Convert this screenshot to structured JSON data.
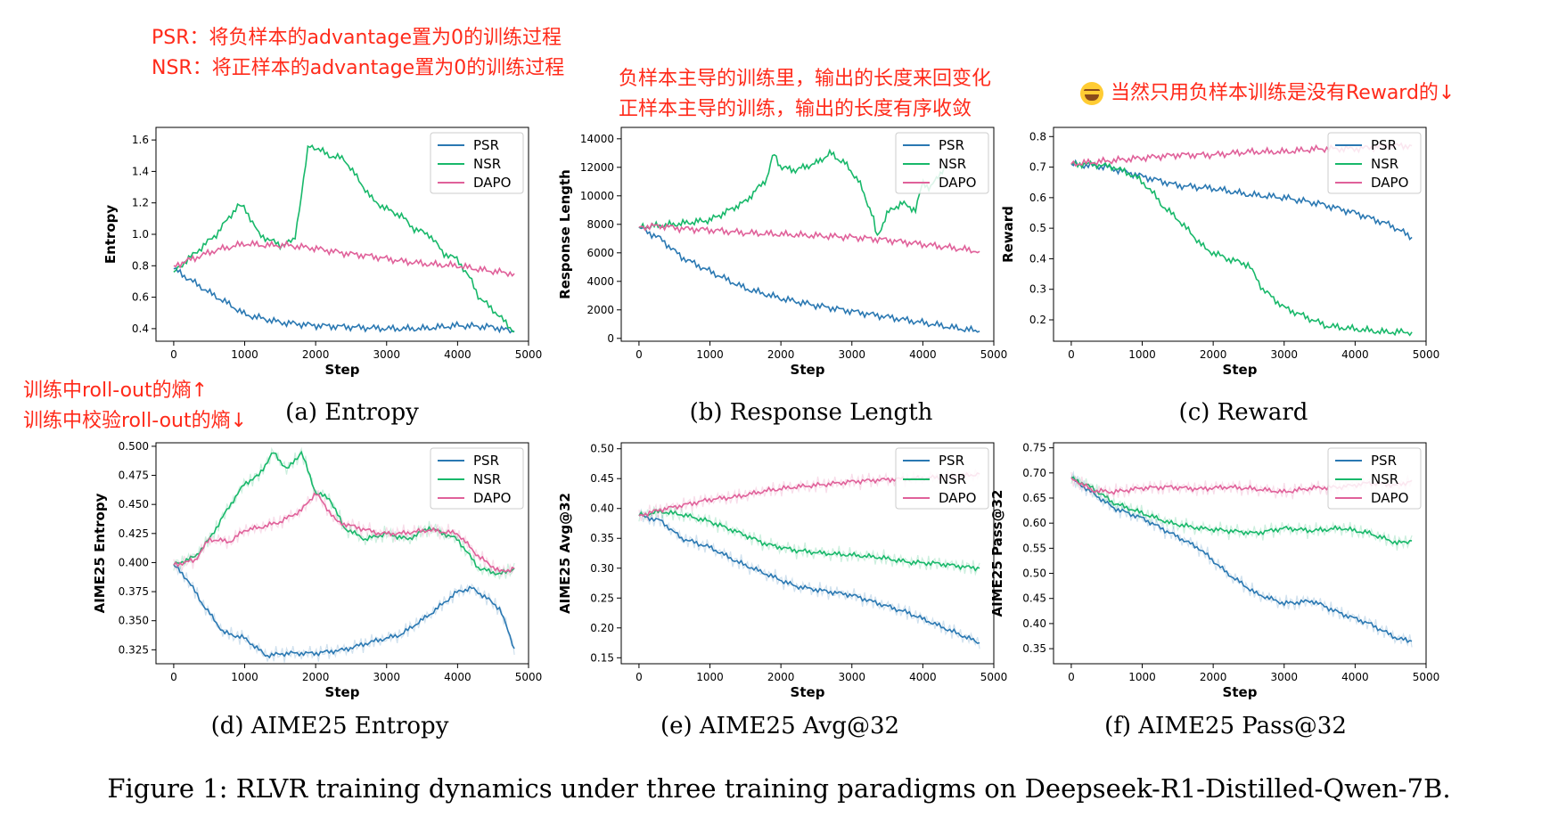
{
  "annotations": {
    "psr_def": "PSR：将负样本的advantage置为0的训练过程",
    "nsr_def": "NSR：将正样本的advantage置为0的训练过程",
    "length_note_1": "负样本主导的训练里，输出的长度来回变化",
    "length_note_2": "正样本主导的训练，输出的长度有序收敛",
    "reward_note": "当然只用负样本训练是没有Reward的↓",
    "entropy_note_1": "训练中roll-out的熵↑",
    "entropy_note_2": "训练中校验roll-out的熵↓"
  },
  "figure_caption": "Figure 1: RLVR training dynamics under three training paradigms on Deepseek-R1-Distilled-Qwen-7B.",
  "colors": {
    "PSR": "#2a78b2",
    "NSR": "#18b86a",
    "DAPO": "#e0619a"
  },
  "chart_data": [
    {
      "id": "a",
      "type": "line",
      "caption": "(a) Entropy",
      "xlabel": "Step",
      "ylabel": "Entropy",
      "xlim": [
        -250,
        5000
      ],
      "ylim": [
        0.32,
        1.68
      ],
      "xticks": [
        0,
        1000,
        2000,
        3000,
        4000,
        5000
      ],
      "yticks": [
        0.4,
        0.6,
        0.8,
        1.0,
        1.2,
        1.4,
        1.6
      ],
      "ytick_labels": [
        "0.4",
        "0.6",
        "0.8",
        "1.0",
        "1.2",
        "1.4",
        "1.6"
      ],
      "legend": "top-right",
      "grid": false,
      "series": [
        {
          "name": "PSR",
          "x": [
            0,
            200,
            500,
            800,
            1000,
            1500,
            2000,
            2500,
            3000,
            3500,
            4000,
            4500,
            4800
          ],
          "y": [
            0.78,
            0.72,
            0.63,
            0.55,
            0.49,
            0.44,
            0.42,
            0.41,
            0.4,
            0.4,
            0.42,
            0.41,
            0.38
          ]
        },
        {
          "name": "NSR",
          "x": [
            0,
            300,
            600,
            900,
            1000,
            1200,
            1500,
            1700,
            1800,
            1900,
            2000,
            2200,
            2400,
            2600,
            2800,
            3000,
            3200,
            3400,
            3600,
            3800,
            4000,
            4200,
            4300,
            4500,
            4650,
            4800
          ],
          "y": [
            0.76,
            0.88,
            1.0,
            1.18,
            1.17,
            1.0,
            0.93,
            0.96,
            1.25,
            1.57,
            1.55,
            1.5,
            1.48,
            1.35,
            1.22,
            1.16,
            1.12,
            1.03,
            1.0,
            0.88,
            0.84,
            0.7,
            0.6,
            0.52,
            0.45,
            0.38
          ]
        },
        {
          "name": "DAPO",
          "x": [
            0,
            300,
            600,
            900,
            1000,
            1300,
            1600,
            2000,
            2400,
            2800,
            3200,
            3600,
            4000,
            4400,
            4800
          ],
          "y": [
            0.8,
            0.85,
            0.9,
            0.93,
            0.94,
            0.93,
            0.93,
            0.91,
            0.88,
            0.86,
            0.83,
            0.81,
            0.8,
            0.77,
            0.75
          ]
        }
      ]
    },
    {
      "id": "b",
      "type": "line",
      "caption": "(b) Response Length",
      "xlabel": "Step",
      "ylabel": "Response Length",
      "xlim": [
        -250,
        5000
      ],
      "ylim": [
        -200,
        14800
      ],
      "xticks": [
        0,
        1000,
        2000,
        3000,
        4000,
        5000
      ],
      "yticks": [
        0,
        2000,
        4000,
        6000,
        8000,
        10000,
        12000,
        14000
      ],
      "ytick_labels": [
        "0",
        "2000",
        "4000",
        "6000",
        "8000",
        "10000",
        "12000",
        "14000"
      ],
      "legend": "top-right",
      "grid": false,
      "series": [
        {
          "name": "PSR",
          "x": [
            0,
            300,
            600,
            1000,
            1500,
            2000,
            2500,
            3000,
            3500,
            4000,
            4500,
            4800
          ],
          "y": [
            7800,
            7000,
            5700,
            4700,
            3500,
            2800,
            2300,
            1900,
            1500,
            1100,
            700,
            500
          ]
        },
        {
          "name": "NSR",
          "x": [
            0,
            500,
            1000,
            1200,
            1500,
            1800,
            1900,
            2000,
            2200,
            2500,
            2700,
            2800,
            2900,
            3100,
            3300,
            3350,
            3500,
            3700,
            3900,
            4000,
            4100,
            4300
          ],
          "y": [
            7800,
            8000,
            8300,
            8800,
            9600,
            11200,
            13000,
            12000,
            11800,
            12300,
            13000,
            12600,
            12300,
            11000,
            8500,
            7000,
            8800,
            9500,
            9000,
            11000,
            10500,
            12000
          ]
        },
        {
          "name": "DAPO",
          "x": [
            0,
            300,
            600,
            1000,
            1500,
            2000,
            2500,
            3000,
            3500,
            4000,
            4500,
            4800
          ],
          "y": [
            7800,
            7900,
            7700,
            7600,
            7400,
            7300,
            7200,
            7100,
            6900,
            6600,
            6300,
            6100
          ]
        }
      ]
    },
    {
      "id": "c",
      "type": "line",
      "caption": "(c) Reward",
      "xlabel": "Step",
      "ylabel": "Reward",
      "xlim": [
        -250,
        5000
      ],
      "ylim": [
        0.13,
        0.83
      ],
      "xticks": [
        0,
        1000,
        2000,
        3000,
        4000,
        5000
      ],
      "yticks": [
        0.2,
        0.3,
        0.4,
        0.5,
        0.6,
        0.7,
        0.8
      ],
      "ytick_labels": [
        "0.2",
        "0.3",
        "0.4",
        "0.5",
        "0.6",
        "0.7",
        "0.8"
      ],
      "legend": "top-right",
      "grid": false,
      "series": [
        {
          "name": "PSR",
          "x": [
            0,
            500,
            1000,
            1500,
            2000,
            2500,
            3000,
            3500,
            4000,
            4500,
            4800
          ],
          "y": [
            0.71,
            0.7,
            0.67,
            0.64,
            0.63,
            0.61,
            0.6,
            0.58,
            0.55,
            0.51,
            0.47
          ]
        },
        {
          "name": "NSR",
          "x": [
            0,
            300,
            600,
            900,
            1100,
            1300,
            1500,
            1700,
            1900,
            2000,
            2200,
            2500,
            2700,
            3000,
            3300,
            3600,
            4000,
            4400,
            4800
          ],
          "y": [
            0.71,
            0.71,
            0.7,
            0.67,
            0.63,
            0.57,
            0.53,
            0.48,
            0.43,
            0.42,
            0.4,
            0.38,
            0.3,
            0.24,
            0.21,
            0.18,
            0.17,
            0.16,
            0.16
          ]
        },
        {
          "name": "DAPO",
          "x": [
            0,
            500,
            1000,
            1500,
            2000,
            2500,
            3000,
            3500,
            4000,
            4500,
            4800
          ],
          "y": [
            0.71,
            0.72,
            0.73,
            0.74,
            0.74,
            0.75,
            0.75,
            0.76,
            0.76,
            0.77,
            0.77
          ]
        }
      ]
    },
    {
      "id": "d",
      "type": "line",
      "caption": "(d) AIME25 Entropy",
      "xlabel": "Step",
      "ylabel": "AIME25 Entropy",
      "xlim": [
        -250,
        5000
      ],
      "ylim": [
        0.313,
        0.503
      ],
      "xticks": [
        0,
        1000,
        2000,
        3000,
        4000,
        5000
      ],
      "yticks": [
        0.325,
        0.35,
        0.375,
        0.4,
        0.425,
        0.45,
        0.475,
        0.5
      ],
      "ytick_labels": [
        "0.325",
        "0.350",
        "0.375",
        "0.400",
        "0.425",
        "0.450",
        "0.475",
        "0.500"
      ],
      "legend": "top-right",
      "grid": false,
      "series": [
        {
          "name": "PSR",
          "x": [
            0,
            200,
            400,
            700,
            1000,
            1300,
            1600,
            2000,
            2400,
            2800,
            3200,
            3600,
            4000,
            4200,
            4400,
            4600,
            4800
          ],
          "y": [
            0.398,
            0.385,
            0.365,
            0.34,
            0.335,
            0.32,
            0.322,
            0.322,
            0.325,
            0.332,
            0.338,
            0.355,
            0.375,
            0.378,
            0.37,
            0.36,
            0.326
          ]
        },
        {
          "name": "NSR",
          "x": [
            0,
            300,
            500,
            800,
            1000,
            1200,
            1400,
            1600,
            1800,
            2000,
            2200,
            2400,
            2700,
            3000,
            3300,
            3600,
            4000,
            4300,
            4600,
            4800
          ],
          "y": [
            0.398,
            0.405,
            0.42,
            0.45,
            0.468,
            0.475,
            0.495,
            0.48,
            0.495,
            0.46,
            0.455,
            0.43,
            0.42,
            0.425,
            0.42,
            0.43,
            0.42,
            0.395,
            0.39,
            0.395
          ]
        },
        {
          "name": "DAPO",
          "x": [
            0,
            300,
            500,
            800,
            1000,
            1200,
            1500,
            1800,
            2000,
            2300,
            2600,
            2900,
            3200,
            3600,
            4000,
            4300,
            4600,
            4800
          ],
          "y": [
            0.398,
            0.402,
            0.42,
            0.418,
            0.428,
            0.43,
            0.435,
            0.445,
            0.46,
            0.435,
            0.43,
            0.425,
            0.425,
            0.428,
            0.425,
            0.405,
            0.392,
            0.395
          ]
        }
      ]
    },
    {
      "id": "e",
      "type": "line",
      "caption": "(e) AIME25 Avg@32",
      "xlabel": "Step",
      "ylabel": "AIME25 Avg@32",
      "xlim": [
        -250,
        5000
      ],
      "ylim": [
        0.14,
        0.51
      ],
      "xticks": [
        0,
        1000,
        2000,
        3000,
        4000,
        5000
      ],
      "yticks": [
        0.15,
        0.2,
        0.25,
        0.3,
        0.35,
        0.4,
        0.45,
        0.5
      ],
      "ytick_labels": [
        "0.15",
        "0.20",
        "0.25",
        "0.30",
        "0.35",
        "0.40",
        "0.45",
        "0.50"
      ],
      "legend": "top-right",
      "grid": false,
      "series": [
        {
          "name": "PSR",
          "x": [
            0,
            300,
            600,
            1000,
            1400,
            1800,
            2200,
            2600,
            3000,
            3400,
            3800,
            4200,
            4600,
            4800
          ],
          "y": [
            0.388,
            0.38,
            0.35,
            0.335,
            0.31,
            0.29,
            0.27,
            0.262,
            0.255,
            0.24,
            0.225,
            0.205,
            0.185,
            0.175
          ]
        },
        {
          "name": "NSR",
          "x": [
            0,
            300,
            600,
            1000,
            1400,
            1800,
            2200,
            2600,
            3000,
            3400,
            3800,
            4200,
            4600,
            4800
          ],
          "y": [
            0.388,
            0.395,
            0.39,
            0.378,
            0.36,
            0.34,
            0.33,
            0.325,
            0.322,
            0.318,
            0.31,
            0.308,
            0.302,
            0.3
          ]
        },
        {
          "name": "DAPO",
          "x": [
            0,
            300,
            600,
            1000,
            1400,
            1800,
            2200,
            2600,
            3000,
            3400,
            3800,
            4200,
            4600,
            4800
          ],
          "y": [
            0.388,
            0.398,
            0.405,
            0.415,
            0.42,
            0.43,
            0.436,
            0.44,
            0.445,
            0.448,
            0.45,
            0.452,
            0.455,
            0.458
          ]
        }
      ]
    },
    {
      "id": "f",
      "type": "line",
      "caption": "(f) AIME25 Pass@32",
      "xlabel": "Step",
      "ylabel": "AIME25 Pass@32",
      "xlim": [
        -250,
        5000
      ],
      "ylim": [
        0.32,
        0.76
      ],
      "xticks": [
        0,
        1000,
        2000,
        3000,
        4000,
        5000
      ],
      "yticks": [
        0.35,
        0.4,
        0.45,
        0.5,
        0.55,
        0.6,
        0.65,
        0.7,
        0.75
      ],
      "ytick_labels": [
        "0.35",
        "0.40",
        "0.45",
        "0.50",
        "0.55",
        "0.60",
        "0.65",
        "0.70",
        "0.75"
      ],
      "legend": "top-right",
      "grid": false,
      "series": [
        {
          "name": "PSR",
          "x": [
            0,
            300,
            600,
            1000,
            1400,
            1800,
            2200,
            2600,
            3000,
            3400,
            3800,
            4200,
            4600,
            4800
          ],
          "y": [
            0.69,
            0.66,
            0.63,
            0.61,
            0.58,
            0.55,
            0.5,
            0.46,
            0.44,
            0.445,
            0.42,
            0.4,
            0.37,
            0.365
          ]
        },
        {
          "name": "NSR",
          "x": [
            0,
            300,
            600,
            1000,
            1400,
            1800,
            2200,
            2600,
            3000,
            3400,
            3800,
            4200,
            4600,
            4800
          ],
          "y": [
            0.69,
            0.67,
            0.64,
            0.62,
            0.6,
            0.59,
            0.585,
            0.58,
            0.59,
            0.585,
            0.59,
            0.58,
            0.56,
            0.565
          ]
        },
        {
          "name": "DAPO",
          "x": [
            0,
            300,
            600,
            1000,
            1400,
            1800,
            2200,
            2600,
            3000,
            3400,
            3800,
            4200,
            4600,
            4800
          ],
          "y": [
            0.69,
            0.665,
            0.662,
            0.67,
            0.672,
            0.668,
            0.672,
            0.668,
            0.662,
            0.67,
            0.672,
            0.68,
            0.675,
            0.685
          ]
        }
      ]
    }
  ]
}
